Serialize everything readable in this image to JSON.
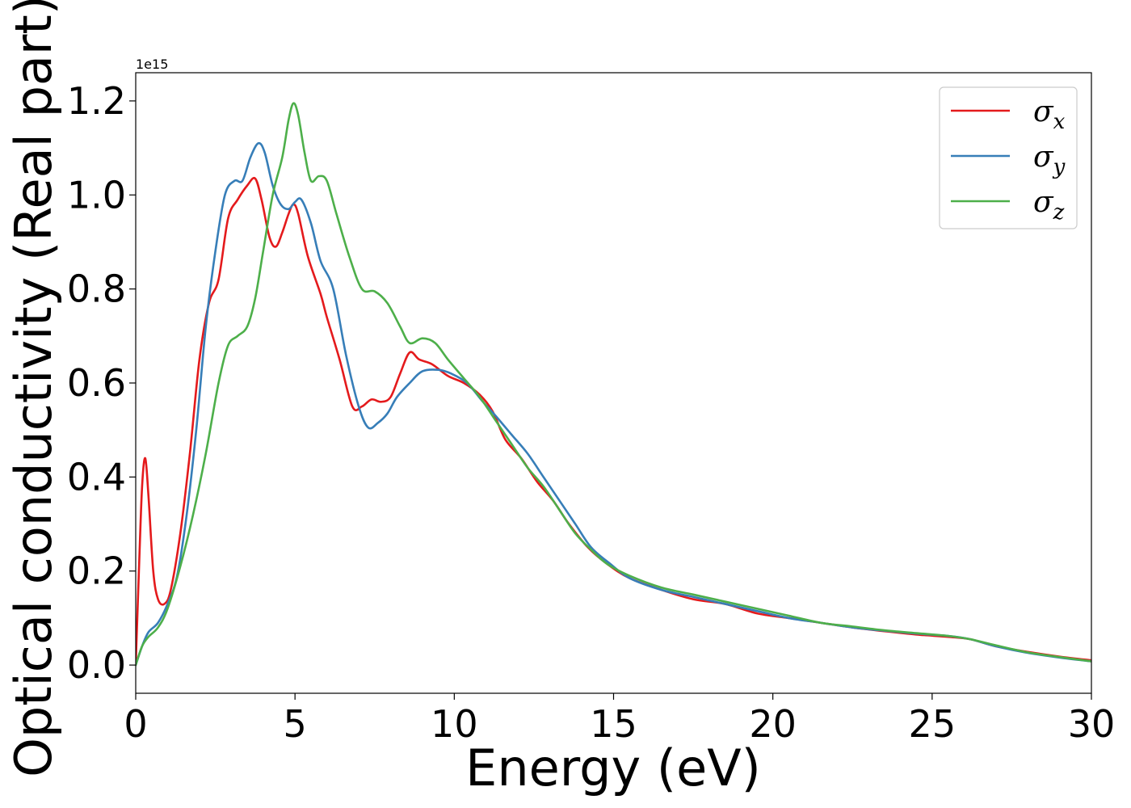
{
  "chart_data": {
    "type": "line",
    "xlabel": "Energy (eV)",
    "ylabel": "Optical conductivity (Real part)",
    "y_offset_label": "1e15",
    "y_scale": 1000000000000000.0,
    "xlim": [
      0,
      30
    ],
    "ylim": [
      -0.06,
      1.26
    ],
    "x_ticks": [
      0,
      5,
      10,
      15,
      20,
      25,
      30
    ],
    "x_tick_labels": [
      "0",
      "5",
      "10",
      "15",
      "20",
      "25",
      "30"
    ],
    "y_ticks": [
      0.0,
      0.2,
      0.4,
      0.6,
      0.8,
      1.0,
      1.2
    ],
    "y_tick_labels": [
      "0.0",
      "0.2",
      "0.4",
      "0.6",
      "0.8",
      "1.0",
      "1.2"
    ],
    "grid": false,
    "legend_position": "top-right",
    "series": [
      {
        "name": "σx",
        "symbol": "σ",
        "subscript": "x",
        "color": "#e41a1c",
        "points": [
          [
            0,
            0.0
          ],
          [
            0.1,
            0.2
          ],
          [
            0.2,
            0.38
          ],
          [
            0.3,
            0.44
          ],
          [
            0.4,
            0.36
          ],
          [
            0.55,
            0.2
          ],
          [
            0.7,
            0.14
          ],
          [
            0.9,
            0.13
          ],
          [
            1.1,
            0.16
          ],
          [
            1.4,
            0.28
          ],
          [
            1.7,
            0.45
          ],
          [
            2.0,
            0.65
          ],
          [
            2.3,
            0.77
          ],
          [
            2.6,
            0.82
          ],
          [
            2.9,
            0.95
          ],
          [
            3.2,
            0.99
          ],
          [
            3.5,
            1.02
          ],
          [
            3.75,
            1.035
          ],
          [
            3.95,
            0.99
          ],
          [
            4.2,
            0.91
          ],
          [
            4.4,
            0.89
          ],
          [
            4.6,
            0.92
          ],
          [
            4.8,
            0.96
          ],
          [
            4.95,
            0.98
          ],
          [
            5.1,
            0.96
          ],
          [
            5.4,
            0.87
          ],
          [
            5.8,
            0.79
          ],
          [
            6.0,
            0.74
          ],
          [
            6.4,
            0.65
          ],
          [
            6.8,
            0.55
          ],
          [
            7.1,
            0.55
          ],
          [
            7.4,
            0.565
          ],
          [
            7.7,
            0.56
          ],
          [
            8.0,
            0.57
          ],
          [
            8.3,
            0.62
          ],
          [
            8.6,
            0.665
          ],
          [
            8.9,
            0.65
          ],
          [
            9.3,
            0.64
          ],
          [
            9.8,
            0.615
          ],
          [
            10.3,
            0.6
          ],
          [
            10.8,
            0.575
          ],
          [
            11.2,
            0.54
          ],
          [
            11.6,
            0.48
          ],
          [
            12.1,
            0.44
          ],
          [
            12.6,
            0.39
          ],
          [
            13.1,
            0.35
          ],
          [
            13.6,
            0.3
          ],
          [
            14.2,
            0.25
          ],
          [
            14.8,
            0.215
          ],
          [
            15.5,
            0.185
          ],
          [
            16.5,
            0.16
          ],
          [
            17.5,
            0.14
          ],
          [
            18.5,
            0.13
          ],
          [
            19.5,
            0.11
          ],
          [
            20.5,
            0.1
          ],
          [
            21.5,
            0.09
          ],
          [
            22.5,
            0.08
          ],
          [
            23.5,
            0.072
          ],
          [
            24.5,
            0.065
          ],
          [
            25.5,
            0.06
          ],
          [
            26.2,
            0.055
          ],
          [
            27,
            0.04
          ],
          [
            28,
            0.028
          ],
          [
            29,
            0.018
          ],
          [
            30,
            0.01
          ]
        ]
      },
      {
        "name": "σy",
        "symbol": "σ",
        "subscript": "y",
        "color": "#377eb8",
        "points": [
          [
            0,
            0.0
          ],
          [
            0.2,
            0.04
          ],
          [
            0.4,
            0.07
          ],
          [
            0.7,
            0.09
          ],
          [
            1.0,
            0.13
          ],
          [
            1.3,
            0.19
          ],
          [
            1.6,
            0.32
          ],
          [
            1.9,
            0.5
          ],
          [
            2.2,
            0.72
          ],
          [
            2.5,
            0.88
          ],
          [
            2.8,
            1.0
          ],
          [
            3.1,
            1.03
          ],
          [
            3.35,
            1.03
          ],
          [
            3.6,
            1.08
          ],
          [
            3.85,
            1.11
          ],
          [
            4.05,
            1.09
          ],
          [
            4.3,
            1.02
          ],
          [
            4.55,
            0.98
          ],
          [
            4.8,
            0.97
          ],
          [
            5.0,
            0.985
          ],
          [
            5.2,
            0.99
          ],
          [
            5.5,
            0.94
          ],
          [
            5.8,
            0.86
          ],
          [
            6.2,
            0.8
          ],
          [
            6.6,
            0.66
          ],
          [
            7.0,
            0.55
          ],
          [
            7.3,
            0.505
          ],
          [
            7.6,
            0.515
          ],
          [
            7.9,
            0.535
          ],
          [
            8.2,
            0.57
          ],
          [
            8.6,
            0.6
          ],
          [
            9.0,
            0.625
          ],
          [
            9.5,
            0.628
          ],
          [
            9.9,
            0.62
          ],
          [
            10.4,
            0.6
          ],
          [
            10.9,
            0.56
          ],
          [
            11.3,
            0.53
          ],
          [
            11.8,
            0.49
          ],
          [
            12.3,
            0.45
          ],
          [
            12.8,
            0.4
          ],
          [
            13.3,
            0.35
          ],
          [
            13.8,
            0.3
          ],
          [
            14.3,
            0.25
          ],
          [
            14.9,
            0.215
          ],
          [
            15.5,
            0.185
          ],
          [
            16.5,
            0.16
          ],
          [
            17.5,
            0.145
          ],
          [
            18.5,
            0.13
          ],
          [
            19.5,
            0.115
          ],
          [
            20.5,
            0.1
          ],
          [
            21.5,
            0.09
          ],
          [
            22.5,
            0.08
          ],
          [
            23.5,
            0.073
          ],
          [
            24.5,
            0.067
          ],
          [
            25.5,
            0.062
          ],
          [
            26.2,
            0.055
          ],
          [
            27,
            0.04
          ],
          [
            28,
            0.026
          ],
          [
            29,
            0.016
          ],
          [
            30,
            0.008
          ]
        ]
      },
      {
        "name": "σz",
        "symbol": "σ",
        "subscript": "z",
        "color": "#4daf4a",
        "points": [
          [
            0,
            0.0
          ],
          [
            0.2,
            0.04
          ],
          [
            0.4,
            0.06
          ],
          [
            0.7,
            0.08
          ],
          [
            1.0,
            0.12
          ],
          [
            1.4,
            0.21
          ],
          [
            1.8,
            0.32
          ],
          [
            2.2,
            0.45
          ],
          [
            2.6,
            0.6
          ],
          [
            2.9,
            0.68
          ],
          [
            3.2,
            0.7
          ],
          [
            3.5,
            0.72
          ],
          [
            3.75,
            0.78
          ],
          [
            4.0,
            0.88
          ],
          [
            4.3,
            1.0
          ],
          [
            4.6,
            1.08
          ],
          [
            4.8,
            1.16
          ],
          [
            4.95,
            1.195
          ],
          [
            5.1,
            1.17
          ],
          [
            5.3,
            1.09
          ],
          [
            5.5,
            1.03
          ],
          [
            5.75,
            1.04
          ],
          [
            6.0,
            1.03
          ],
          [
            6.3,
            0.96
          ],
          [
            6.7,
            0.87
          ],
          [
            7.1,
            0.8
          ],
          [
            7.5,
            0.795
          ],
          [
            7.9,
            0.77
          ],
          [
            8.3,
            0.72
          ],
          [
            8.6,
            0.685
          ],
          [
            9.0,
            0.695
          ],
          [
            9.4,
            0.685
          ],
          [
            9.8,
            0.65
          ],
          [
            10.3,
            0.61
          ],
          [
            10.8,
            0.57
          ],
          [
            11.3,
            0.52
          ],
          [
            11.8,
            0.47
          ],
          [
            12.3,
            0.42
          ],
          [
            12.8,
            0.38
          ],
          [
            13.3,
            0.33
          ],
          [
            13.8,
            0.28
          ],
          [
            14.3,
            0.245
          ],
          [
            14.8,
            0.215
          ],
          [
            15.5,
            0.19
          ],
          [
            16.5,
            0.165
          ],
          [
            17.5,
            0.15
          ],
          [
            18.5,
            0.135
          ],
          [
            19.5,
            0.12
          ],
          [
            20.5,
            0.105
          ],
          [
            21.5,
            0.09
          ],
          [
            22.5,
            0.082
          ],
          [
            23.5,
            0.074
          ],
          [
            24.5,
            0.068
          ],
          [
            25.5,
            0.062
          ],
          [
            26.2,
            0.055
          ],
          [
            27,
            0.042
          ],
          [
            28,
            0.027
          ],
          [
            29,
            0.017
          ],
          [
            30,
            0.008
          ]
        ]
      }
    ]
  }
}
